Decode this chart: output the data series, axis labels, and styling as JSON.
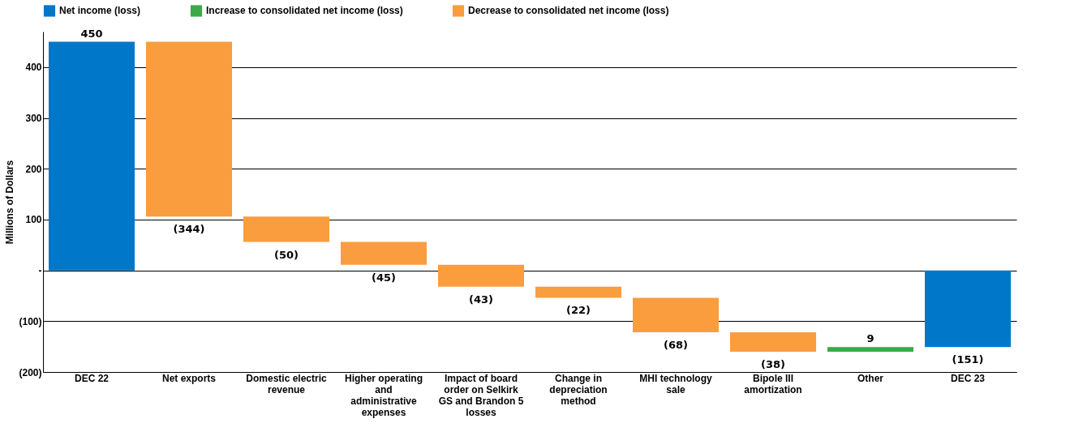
{
  "chart_data": {
    "type": "bar",
    "ylabel": "Millions of Dollars",
    "stacked": false,
    "categories": [
      "DEC 22",
      "Net exports",
      "Domestic electric revenue",
      "Higher operating and administrative expenses",
      "Impact of board order on Selkirk GS and Brandon 5 losses",
      "Change in depreciation method",
      "MHI technology sale",
      "Bipole III amortization",
      "Other",
      "DEC 23"
    ],
    "series": [
      {
        "name": "Net income (loss)",
        "color": "#0077c8",
        "values": [
          450,
          null,
          null,
          null,
          null,
          null,
          null,
          null,
          null,
          -151
        ],
        "base": [
          0,
          null,
          null,
          null,
          null,
          null,
          null,
          null,
          null,
          0
        ]
      },
      {
        "name": "Increase to consolidated net income (loss)",
        "color": "#3aaa49",
        "values": [
          null,
          null,
          null,
          null,
          null,
          null,
          null,
          null,
          9,
          null
        ],
        "base": [
          null,
          null,
          null,
          null,
          null,
          null,
          null,
          null,
          -160,
          null
        ]
      },
      {
        "name": "Decrease to consolidated net income (loss)",
        "color": "#f99d3e",
        "values": [
          null,
          -344,
          -50,
          -45,
          -43,
          -22,
          -68,
          -38,
          null,
          null
        ],
        "base": [
          null,
          450,
          106,
          56,
          11,
          -32,
          -54,
          -122,
          null,
          null
        ]
      }
    ],
    "value_labels": [
      "450",
      "(344)",
      "(50)",
      "(45)",
      "(43)",
      "(22)",
      "(68)",
      "(38)",
      "9",
      "(151)"
    ],
    "ylim": [
      -200,
      470
    ],
    "yticks": [
      {
        "value": -200,
        "label": "(200)"
      },
      {
        "value": -100,
        "label": "(100)"
      },
      {
        "value": 0,
        "label": "-"
      },
      100,
      200,
      300,
      400
    ],
    "grid": "y",
    "legend": "top"
  }
}
